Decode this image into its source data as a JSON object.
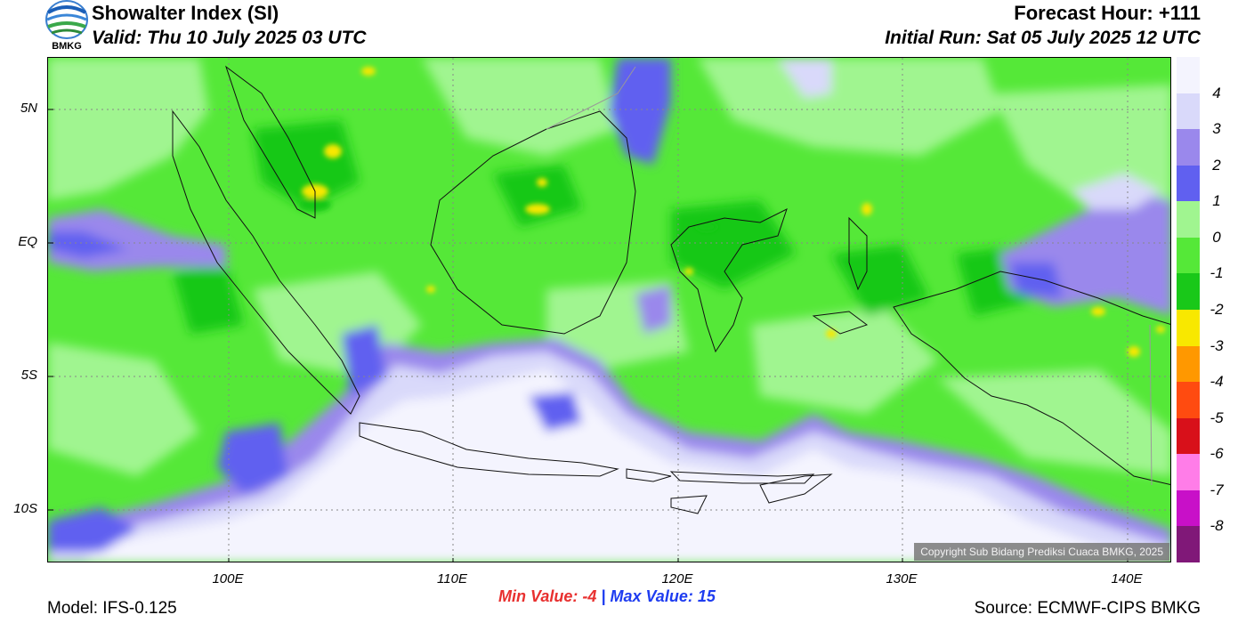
{
  "header": {
    "title": "Showalter Index (SI)",
    "valid": "Valid: Thu 10 July 2025 03 UTC",
    "forecast_hour": "Forecast Hour: +111",
    "initial_run": "Initial Run: Sat 05 July 2025 12 UTC"
  },
  "logo": {
    "text": "BMKG"
  },
  "map": {
    "lat_labels": [
      "5N",
      "EQ",
      "5S",
      "10S"
    ],
    "lon_labels": [
      "100E",
      "110E",
      "120E",
      "130E",
      "140E"
    ],
    "copyright": "Copyright Sub Bidang Prediksi Cuaca BMKG, 2025"
  },
  "stats": {
    "min_label": "Min Value:",
    "min_value": "-4",
    "separator": "|",
    "max_label": "Max Value:",
    "max_value": "15"
  },
  "footer": {
    "model": "Model: IFS-0.125",
    "source": "Source: ECMWF-CIPS BMKG"
  },
  "colorbar": {
    "labels": [
      "4",
      "3",
      "2",
      "1",
      "0",
      "-1",
      "-2",
      "-3",
      "-4",
      "-5",
      "-6",
      "-7",
      "-8"
    ],
    "colors": [
      "#f4f4fe",
      "#d9d9fa",
      "#9a88ec",
      "#6060f0",
      "#a0f590",
      "#55e838",
      "#19c819",
      "#f8e800",
      "#ff9800",
      "#ff4b10",
      "#d8101a",
      "#ff7de8",
      "#c810c8",
      "#801878"
    ]
  }
}
